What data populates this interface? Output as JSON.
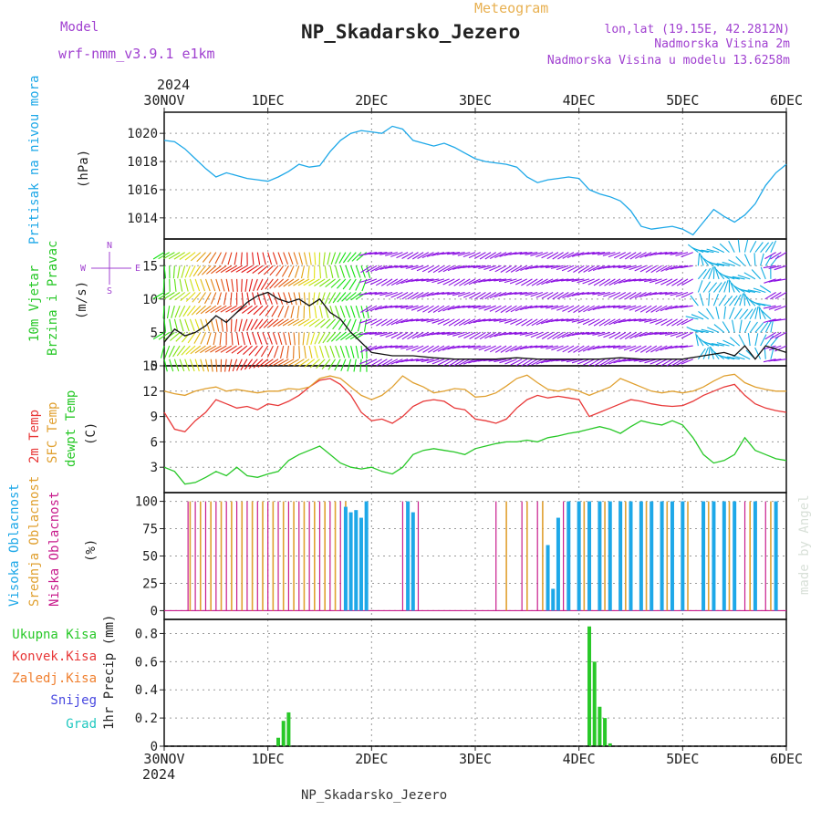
{
  "header": {
    "model_label": "Model",
    "model_name": "wrf-nmm_v3.9.1  e1km",
    "meteogram_label": "Meteogram",
    "station_title": "NP_Skadarsko_Jezero",
    "coords": "lon,lat (19.15E, 42.2812N)",
    "altitude": "Nadmorska Visina 2m",
    "model_altitude": "Nadmorska Visina u modelu 13.6258m",
    "footer_station": "NP_Skadarsko_Jezero",
    "watermark": "made by Angel",
    "year": "2024"
  },
  "colors": {
    "pressure": "#1ea8e8",
    "temp2m": "#e83838",
    "sfc_temp": "#e0a030",
    "dewpt": "#28c828",
    "high_cloud": "#1ea8e8",
    "mid_cloud": "#e0a030",
    "low_cloud": "#c81c8c",
    "precip": "#28c828",
    "purple": "#a040d0"
  },
  "x_axis": {
    "ticks": [
      "30NOV",
      "1DEC",
      "2DEC",
      "3DEC",
      "4DEC",
      "5DEC",
      "6DEC"
    ],
    "range_days": [
      0,
      6
    ]
  },
  "panels": {
    "pressure": {
      "ylabel": "Pritisak na nivou mora",
      "units": "(hPa)",
      "ticks": [
        "1014",
        "1016",
        "1018",
        "1020"
      ]
    },
    "wind": {
      "ylabel1": "10m Vjetar",
      "ylabel2": "Brzina i Pravac",
      "units": "(m/s)",
      "ticks": [
        "0",
        "5",
        "10",
        "15"
      ],
      "compass_n": "N",
      "compass_w": "W",
      "compass_e": "E",
      "compass_s": "S"
    },
    "temp": {
      "ylabel1": "2m Temp",
      "ylabel2": "SFC Temp",
      "ylabel3": "dewpt Temp",
      "units": "(C)",
      "ticks": [
        "3",
        "6",
        "9",
        "12",
        "15"
      ]
    },
    "cloud": {
      "ylabel1": "Visoka Oblacnost",
      "ylabel2": "Srednja Oblacnost",
      "ylabel3": "Niska Oblacnost",
      "units": "(%)",
      "ticks": [
        "0",
        "25",
        "50",
        "75",
        "100"
      ]
    },
    "precip": {
      "legend": [
        "Ukupna Kisa",
        "Konvek.Kisa",
        "Zaledj.Kisa",
        "Snijeg",
        "Grad"
      ],
      "legend_colors": [
        "#28c828",
        "#e83838",
        "#f08030",
        "#4848e0",
        "#20c8c0"
      ],
      "ylabel": "1hr Precip (mm)",
      "ticks": [
        "0",
        "0.2",
        "0.4",
        "0.6",
        "0.8"
      ]
    }
  },
  "chart_data": [
    {
      "type": "line",
      "name": "pressure",
      "x": [
        0,
        0.1,
        0.2,
        0.3,
        0.4,
        0.5,
        0.6,
        0.7,
        0.8,
        0.9,
        1.0,
        1.1,
        1.2,
        1.3,
        1.4,
        1.5,
        1.6,
        1.7,
        1.8,
        1.9,
        2.0,
        2.1,
        2.2,
        2.3,
        2.4,
        2.5,
        2.6,
        2.7,
        2.8,
        2.9,
        3.0,
        3.1,
        3.2,
        3.3,
        3.4,
        3.5,
        3.6,
        3.7,
        3.8,
        3.9,
        4.0,
        4.1,
        4.2,
        4.3,
        4.4,
        4.5,
        4.6,
        4.7,
        4.8,
        4.9,
        5.0,
        5.1,
        5.2,
        5.3,
        5.4,
        5.5,
        5.6,
        5.7,
        5.8,
        5.9,
        6.0
      ],
      "y": [
        1019.5,
        1019.4,
        1018.9,
        1018.2,
        1017.5,
        1016.9,
        1017.2,
        1017.0,
        1016.8,
        1016.7,
        1016.6,
        1016.9,
        1017.3,
        1017.8,
        1017.6,
        1017.7,
        1018.7,
        1019.5,
        1020.0,
        1020.2,
        1020.1,
        1020.0,
        1020.5,
        1020.3,
        1019.5,
        1019.3,
        1019.1,
        1019.3,
        1019.0,
        1018.6,
        1018.2,
        1018.0,
        1017.9,
        1017.8,
        1017.6,
        1016.9,
        1016.5,
        1016.7,
        1016.8,
        1016.9,
        1016.8,
        1016.0,
        1015.7,
        1015.5,
        1015.2,
        1014.5,
        1013.4,
        1013.2,
        1013.3,
        1013.4,
        1013.2,
        1012.8,
        1013.7,
        1014.6,
        1014.1,
        1013.7,
        1014.2,
        1015.0,
        1016.3,
        1017.2,
        1017.8
      ],
      "ylim": [
        1012.5,
        1021.5
      ]
    },
    {
      "type": "line",
      "name": "wind_speed",
      "x": [
        0,
        0.1,
        0.2,
        0.3,
        0.4,
        0.5,
        0.6,
        0.7,
        0.8,
        0.9,
        1.0,
        1.1,
        1.2,
        1.3,
        1.4,
        1.5,
        1.6,
        1.7,
        1.8,
        1.9,
        2.0,
        2.2,
        2.4,
        2.6,
        2.8,
        3.0,
        3.2,
        3.4,
        3.6,
        3.8,
        4.0,
        4.2,
        4.4,
        4.6,
        4.8,
        5.0,
        5.2,
        5.4,
        5.5,
        5.6,
        5.7,
        5.8,
        5.9,
        6.0
      ],
      "y": [
        3.5,
        5.5,
        4.5,
        5.0,
        6.0,
        7.5,
        6.5,
        8.0,
        9.5,
        10.5,
        11.0,
        10.0,
        9.5,
        10.0,
        9.0,
        10.0,
        8.0,
        7.0,
        5.0,
        3.5,
        2.0,
        1.5,
        1.5,
        1.2,
        1.0,
        1.0,
        1.0,
        1.2,
        1.0,
        1.0,
        1.0,
        1.0,
        1.2,
        1.0,
        1.0,
        1.0,
        1.5,
        2.0,
        1.5,
        3.0,
        1.0,
        3.0,
        2.5,
        2.0
      ],
      "ylim": [
        0,
        19
      ]
    },
    {
      "type": "line",
      "name": "temperature",
      "x": [
        0,
        0.1,
        0.2,
        0.3,
        0.4,
        0.5,
        0.6,
        0.7,
        0.8,
        0.9,
        1.0,
        1.1,
        1.2,
        1.3,
        1.4,
        1.5,
        1.6,
        1.7,
        1.8,
        1.9,
        2.0,
        2.1,
        2.2,
        2.3,
        2.4,
        2.5,
        2.6,
        2.7,
        2.8,
        2.9,
        3.0,
        3.1,
        3.2,
        3.3,
        3.4,
        3.5,
        3.6,
        3.7,
        3.8,
        3.9,
        4.0,
        4.1,
        4.2,
        4.3,
        4.4,
        4.5,
        4.6,
        4.7,
        4.8,
        4.9,
        5.0,
        5.1,
        5.2,
        5.3,
        5.4,
        5.5,
        5.6,
        5.7,
        5.8,
        5.9,
        6.0
      ],
      "series": [
        {
          "name": "2m Temp",
          "values": [
            9.5,
            7.5,
            7.2,
            8.5,
            9.5,
            11.0,
            10.5,
            10.0,
            10.2,
            9.8,
            10.5,
            10.3,
            10.8,
            11.5,
            12.5,
            13.3,
            13.5,
            12.8,
            11.5,
            9.5,
            8.5,
            8.7,
            8.2,
            9.0,
            10.2,
            10.8,
            11.0,
            10.8,
            10.0,
            9.8,
            8.7,
            8.5,
            8.2,
            8.7,
            10.0,
            11.0,
            11.5,
            11.2,
            11.4,
            11.2,
            11.0,
            9.0,
            9.5,
            10.0,
            10.5,
            11.0,
            10.8,
            10.5,
            10.3,
            10.2,
            10.3,
            10.8,
            11.5,
            12.0,
            12.5,
            12.8,
            11.5,
            10.5,
            10.0,
            9.7,
            9.5
          ]
        },
        {
          "name": "SFC Temp",
          "values": [
            12.0,
            11.7,
            11.5,
            12.0,
            12.3,
            12.5,
            12.0,
            12.2,
            12.0,
            11.8,
            12.0,
            12.0,
            12.3,
            12.2,
            12.5,
            13.5,
            13.8,
            13.5,
            12.5,
            11.5,
            11.0,
            11.5,
            12.5,
            13.8,
            13.0,
            12.5,
            11.8,
            12.0,
            12.3,
            12.2,
            11.3,
            11.4,
            11.8,
            12.6,
            13.5,
            13.9,
            13.0,
            12.2,
            12.0,
            12.3,
            12.0,
            11.5,
            12.0,
            12.5,
            13.5,
            13.0,
            12.5,
            12.0,
            11.8,
            12.0,
            11.8,
            12.0,
            12.5,
            13.2,
            13.8,
            14.0,
            13.0,
            12.5,
            12.2,
            12.0,
            12.0
          ]
        },
        {
          "name": "dewpt Temp",
          "values": [
            3.0,
            2.5,
            1.0,
            1.2,
            1.8,
            2.5,
            2.0,
            3.0,
            2.0,
            1.8,
            2.2,
            2.5,
            3.8,
            4.5,
            5.0,
            5.5,
            4.5,
            3.5,
            3.0,
            2.8,
            3.0,
            2.5,
            2.2,
            3.0,
            4.5,
            5.0,
            5.2,
            5.0,
            4.8,
            4.5,
            5.2,
            5.5,
            5.8,
            6.0,
            6.0,
            6.2,
            6.0,
            6.5,
            6.7,
            7.0,
            7.2,
            7.5,
            7.8,
            7.5,
            7.0,
            7.8,
            8.5,
            8.2,
            8.0,
            8.5,
            8.0,
            6.5,
            4.5,
            3.5,
            3.8,
            4.5,
            6.5,
            5.0,
            4.5,
            4.0,
            3.8
          ]
        }
      ],
      "ylim": [
        0,
        15
      ]
    },
    {
      "type": "bar",
      "name": "cloud",
      "high": [
        [
          1.75,
          95
        ],
        [
          1.8,
          90
        ],
        [
          1.85,
          92
        ],
        [
          1.9,
          85
        ],
        [
          1.95,
          100
        ],
        [
          2.35,
          100
        ],
        [
          2.4,
          90
        ],
        [
          3.7,
          60
        ],
        [
          3.75,
          20
        ],
        [
          3.8,
          85
        ],
        [
          3.9,
          100
        ],
        [
          4.0,
          100
        ],
        [
          4.1,
          100
        ],
        [
          4.2,
          100
        ],
        [
          4.3,
          100
        ],
        [
          4.4,
          100
        ],
        [
          4.5,
          100
        ],
        [
          4.6,
          100
        ],
        [
          4.7,
          100
        ],
        [
          4.8,
          100
        ],
        [
          4.9,
          100
        ],
        [
          5.0,
          100
        ],
        [
          5.2,
          100
        ],
        [
          5.3,
          100
        ],
        [
          5.4,
          100
        ],
        [
          5.5,
          100
        ],
        [
          5.7,
          100
        ],
        [
          5.9,
          100
        ]
      ],
      "mid_x": [
        0.25,
        0.35,
        0.45,
        0.55,
        0.65,
        0.75,
        0.85,
        0.95,
        1.05,
        1.15,
        1.25,
        1.35,
        1.45,
        1.55,
        1.65,
        1.75,
        2.35,
        3.3,
        3.5,
        3.65,
        3.9,
        4.05,
        4.25,
        4.45,
        4.65,
        4.85,
        5.05,
        5.25,
        5.45,
        5.65,
        5.85
      ],
      "low_x": [
        0.23,
        0.3,
        0.4,
        0.5,
        0.6,
        0.7,
        0.8,
        0.9,
        1.0,
        1.1,
        1.2,
        1.3,
        1.4,
        1.5,
        1.6,
        1.7,
        2.3,
        2.45,
        3.2,
        3.45,
        3.6,
        3.85,
        4.0,
        4.2,
        4.4,
        4.6,
        4.8,
        5.0,
        5.2,
        5.4,
        5.6,
        5.8
      ],
      "ylim": [
        0,
        100
      ]
    },
    {
      "type": "bar",
      "name": "precip",
      "x": [
        1.1,
        1.15,
        1.2,
        4.1,
        4.15,
        4.2,
        4.25,
        4.3
      ],
      "values": [
        0.06,
        0.18,
        0.24,
        0.85,
        0.6,
        0.28,
        0.2,
        0.02
      ],
      "ylim": [
        0,
        0.9
      ]
    }
  ]
}
